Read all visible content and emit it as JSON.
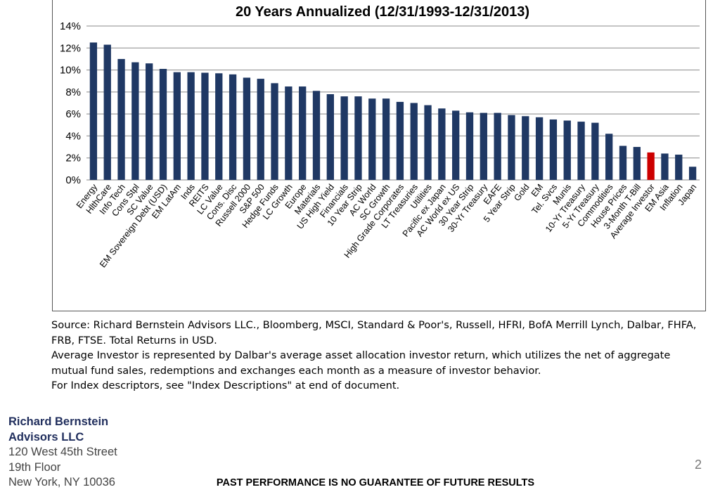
{
  "chart_data": {
    "type": "bar",
    "title": "20 Years Annualized (12/31/1993-12/31/2013)",
    "ylim": [
      0,
      14
    ],
    "yticks": [
      "0%",
      "2%",
      "4%",
      "6%",
      "8%",
      "10%",
      "12%",
      "14%"
    ],
    "grid": true,
    "categories": [
      "Energy",
      "HlthCare",
      "Info Tech",
      "Cons Stpl",
      "SC Value",
      "EM Sovereign Debt (USD)",
      "EM LatAm",
      "Inds",
      "REITS",
      "LC Value",
      "Cons. Disc",
      "Russell 2000",
      "S&P 500",
      "Hedge Funds",
      "LC Growth",
      "Europe",
      "Materials",
      "US High Yield",
      "Financials",
      "10 Year Strip",
      "AC World",
      "SC Growth",
      "High Grade Corporates",
      "LT Treasuries",
      "Utilities",
      "Pacific ex Japan",
      "AC World ex US",
      "30 Year Strip",
      "30-Yr Treasury",
      "EAFE",
      "5 Year Strip",
      "Gold",
      "EM",
      "Tel. Svcs",
      "Munis",
      "10-Yr Treasury",
      "5-Yr Treasury",
      "Commodities",
      "House Prices",
      "3-Month T-Bill",
      "Average Investor",
      "EM Asia",
      "Inflation",
      "Japan"
    ],
    "values": [
      12.5,
      12.3,
      11.0,
      10.7,
      10.6,
      10.1,
      9.8,
      9.8,
      9.75,
      9.7,
      9.6,
      9.3,
      9.2,
      8.8,
      8.5,
      8.5,
      8.1,
      7.8,
      7.6,
      7.6,
      7.4,
      7.4,
      7.1,
      7.0,
      6.8,
      6.5,
      6.3,
      6.15,
      6.1,
      6.1,
      5.9,
      5.8,
      5.7,
      5.5,
      5.4,
      5.3,
      5.2,
      4.2,
      3.1,
      3.0,
      2.5,
      2.4,
      2.3,
      1.2
    ],
    "bar_color": "#1f3864",
    "highlight_color": "#cc0000",
    "highlight_category": "Average Investor"
  },
  "notes": [
    "Source: Richard Bernstein Advisors LLC., Bloomberg, MSCI, Standard & Poor's, Russell, HFRI, BofA Merrill Lynch, Dalbar, FHFA, FRB, FTSE.  Total Returns in USD.",
    "Average Investor is represented by Dalbar's average asset allocation investor return, which utilizes the net of aggregate mutual fund sales, redemptions and exchanges each month as a measure of investor behavior.",
    "For Index descriptors, see \"Index Descriptions\" at end of document."
  ],
  "company": {
    "name_line1": "Richard Bernstein",
    "name_line2": "Advisors LLC",
    "address1": "120 West 45th Street",
    "address2": "19th Floor",
    "address3": "New York, NY 10036"
  },
  "page_number": "2",
  "disclaimer": "PAST PERFORMANCE IS NO GUARANTEE OF FUTURE RESULTS"
}
